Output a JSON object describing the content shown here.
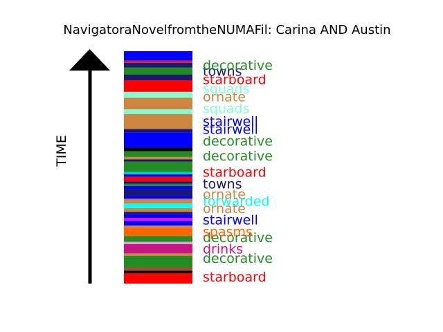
{
  "chart_data": {
    "type": "bar",
    "title": "NavigatoraNovelfromtheNUMAFil: Carina AND Austin",
    "ylabel": "TIME",
    "ylim": [
      0,
      1
    ],
    "stripes": [
      {
        "color": "#ff0000",
        "start": 0.0,
        "end": 0.045
      },
      {
        "color": "#000000",
        "start": 0.045,
        "end": 0.055
      },
      {
        "color": "#a0522d",
        "start": 0.055,
        "end": 0.07
      },
      {
        "color": "#228b22",
        "start": 0.07,
        "end": 0.12
      },
      {
        "color": "#cd853f",
        "start": 0.12,
        "end": 0.13
      },
      {
        "color": "#c71585",
        "start": 0.13,
        "end": 0.17
      },
      {
        "color": "#dda0dd",
        "start": 0.17,
        "end": 0.18
      },
      {
        "color": "#228b22",
        "start": 0.18,
        "end": 0.205
      },
      {
        "color": "#ff6600",
        "start": 0.205,
        "end": 0.24
      },
      {
        "color": "#cd853f",
        "start": 0.24,
        "end": 0.25
      },
      {
        "color": "#0000ff",
        "start": 0.25,
        "end": 0.27
      },
      {
        "color": "#ff00ff",
        "start": 0.27,
        "end": 0.282
      },
      {
        "color": "#0000ff",
        "start": 0.282,
        "end": 0.3
      },
      {
        "color": "#191970",
        "start": 0.3,
        "end": 0.308
      },
      {
        "color": "#cd853f",
        "start": 0.308,
        "end": 0.325
      },
      {
        "color": "#00ffff",
        "start": 0.325,
        "end": 0.345
      },
      {
        "color": "#cd853f",
        "start": 0.345,
        "end": 0.365
      },
      {
        "color": "#0000ff",
        "start": 0.365,
        "end": 0.378
      },
      {
        "color": "#191970",
        "start": 0.378,
        "end": 0.405
      },
      {
        "color": "#0000ff",
        "start": 0.405,
        "end": 0.42
      },
      {
        "color": "#228b22",
        "start": 0.42,
        "end": 0.43
      },
      {
        "color": "#191970",
        "start": 0.43,
        "end": 0.44
      },
      {
        "color": "#ff0000",
        "start": 0.44,
        "end": 0.46
      },
      {
        "color": "#0000ff",
        "start": 0.46,
        "end": 0.47
      },
      {
        "color": "#00ced1",
        "start": 0.47,
        "end": 0.48
      },
      {
        "color": "#228b22",
        "start": 0.48,
        "end": 0.525
      },
      {
        "color": "#191970",
        "start": 0.525,
        "end": 0.535
      },
      {
        "color": "#cd853f",
        "start": 0.535,
        "end": 0.545
      },
      {
        "color": "#228b22",
        "start": 0.545,
        "end": 0.57
      },
      {
        "color": "#000000",
        "start": 0.57,
        "end": 0.585
      },
      {
        "color": "#0000ff",
        "start": 0.585,
        "end": 0.65
      },
      {
        "color": "#191970",
        "start": 0.65,
        "end": 0.665
      },
      {
        "color": "#cd853f",
        "start": 0.665,
        "end": 0.73
      },
      {
        "color": "#7fffd4",
        "start": 0.73,
        "end": 0.75
      },
      {
        "color": "#cd853f",
        "start": 0.75,
        "end": 0.8
      },
      {
        "color": "#7fffd4",
        "start": 0.8,
        "end": 0.825
      },
      {
        "color": "#ff0000",
        "start": 0.825,
        "end": 0.875
      },
      {
        "color": "#191970",
        "start": 0.875,
        "end": 0.9
      },
      {
        "color": "#228b22",
        "start": 0.9,
        "end": 0.93
      },
      {
        "color": "#191970",
        "start": 0.93,
        "end": 0.95
      },
      {
        "color": "#dc143c",
        "start": 0.95,
        "end": 0.96
      },
      {
        "color": "#0000ff",
        "start": 0.96,
        "end": 0.975
      },
      {
        "color": "#0000ff",
        "start": 0.975,
        "end": 1.0
      }
    ],
    "words": [
      {
        "text": "starboard",
        "color": "#ff0000",
        "value": 0.03
      },
      {
        "text": "decorative",
        "color": "#228b22",
        "value": 0.11
      },
      {
        "text": "drinks",
        "color": "#c71585",
        "value": 0.15
      },
      {
        "text": "decorative",
        "color": "#228b22",
        "value": 0.2
      },
      {
        "text": "spasms",
        "color": "#ff6600",
        "value": 0.225
      },
      {
        "text": "stairwell",
        "color": "#0000ff",
        "value": 0.275
      },
      {
        "text": "ornate",
        "color": "#cd853f",
        "value": 0.325
      },
      {
        "text": "forwarded",
        "color": "#00ffff",
        "value": 0.355
      },
      {
        "text": "ornate",
        "color": "#cd853f",
        "value": 0.385
      },
      {
        "text": "towns",
        "color": "#191970",
        "value": 0.43
      },
      {
        "text": "starboard",
        "color": "#ff0000",
        "value": 0.48
      },
      {
        "text": "decorative",
        "color": "#228b22",
        "value": 0.55
      },
      {
        "text": "decorative",
        "color": "#228b22",
        "value": 0.615
      },
      {
        "text": "stairwell",
        "color": "#0000ff",
        "value": 0.665
      },
      {
        "text": "stairwell",
        "color": "#0000ff",
        "value": 0.7
      },
      {
        "text": "squads",
        "color": "#7fffd4",
        "value": 0.755
      },
      {
        "text": "ornate",
        "color": "#cd853f",
        "value": 0.805
      },
      {
        "text": "squads",
        "color": "#7fffd4",
        "value": 0.84
      },
      {
        "text": "starboard",
        "color": "#ff0000",
        "value": 0.88
      },
      {
        "text": "towns",
        "color": "#191970",
        "value": 0.915
      },
      {
        "text": "decorative",
        "color": "#228b22",
        "value": 0.94
      }
    ]
  }
}
